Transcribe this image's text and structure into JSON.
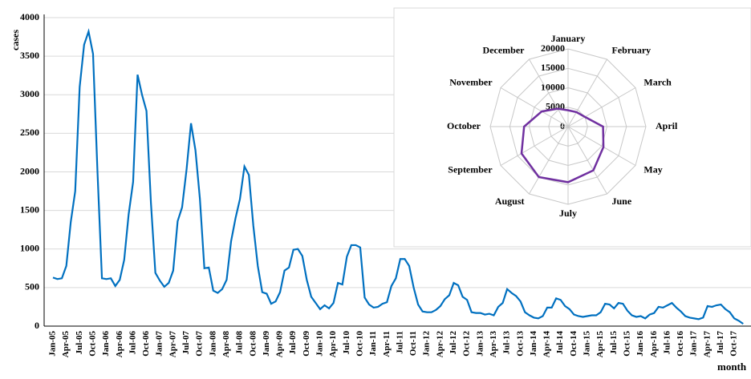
{
  "chart_data": [
    {
      "type": "line",
      "y_label": "cases",
      "x_label": "month",
      "color": "#0070c0",
      "ylim": [
        0,
        4000
      ],
      "yticks": [
        0,
        500,
        1000,
        1500,
        2000,
        2500,
        3000,
        3500,
        4000
      ],
      "grid": true,
      "categories": [
        "Jan-05",
        null,
        null,
        "Apr-05",
        null,
        null,
        "Jul-05",
        null,
        null,
        "Oct-05",
        null,
        null,
        "Jan-06",
        null,
        null,
        "Apr-06",
        null,
        null,
        "Jul-06",
        null,
        null,
        "Oct-06",
        null,
        null,
        "Jan-07",
        null,
        null,
        "Apr-07",
        null,
        null,
        "Jul-07",
        null,
        null,
        "Oct-07",
        null,
        null,
        "Jan-08",
        null,
        null,
        "Apr-08",
        null,
        null,
        "Jul-08",
        null,
        null,
        "Oct-08",
        null,
        null,
        "Jan-09",
        null,
        null,
        "Apr-09",
        null,
        null,
        "Jul-09",
        null,
        null,
        "Oct-09",
        null,
        null,
        "Jan-10",
        null,
        null,
        "Apr-10",
        null,
        null,
        "Jul-10",
        null,
        null,
        "Oct-10",
        null,
        null,
        "Jan-11",
        null,
        null,
        "Apr-11",
        null,
        null,
        "Jul-11",
        null,
        null,
        "Oct-11",
        null,
        null,
        "Jan-12",
        null,
        null,
        "Apr-12",
        null,
        null,
        "Jul-12",
        null,
        null,
        "Oct-12",
        null,
        null,
        "Jan-13",
        null,
        null,
        "Apr-13",
        null,
        null,
        "Jul-13",
        null,
        null,
        "Oct-13",
        null,
        null,
        "Jan-14",
        null,
        null,
        "Apr-14",
        null,
        null,
        "Jul-14",
        null,
        null,
        "Oct-14",
        null,
        null,
        "Jan-15",
        null,
        null,
        "Apr-15",
        null,
        null,
        "Jul-15",
        null,
        null,
        "Oct-15",
        null,
        null,
        "Jan-16",
        null,
        null,
        "Apr-16",
        null,
        null,
        "Jul-16",
        null,
        null,
        "Oct-16",
        null,
        null,
        "Jan-17",
        null,
        null,
        "Apr-17",
        null,
        null,
        "Jul-17",
        null,
        null,
        "Oct-17",
        null,
        null
      ],
      "values": [
        630,
        610,
        620,
        780,
        1350,
        1750,
        3100,
        3650,
        3820,
        3530,
        2000,
        620,
        610,
        620,
        520,
        600,
        860,
        1450,
        1870,
        3260,
        3000,
        2790,
        1600,
        690,
        590,
        510,
        560,
        720,
        1360,
        1540,
        2030,
        2630,
        2280,
        1650,
        750,
        760,
        460,
        430,
        480,
        600,
        1100,
        1400,
        1650,
        2070,
        1960,
        1300,
        780,
        440,
        420,
        290,
        320,
        440,
        720,
        760,
        990,
        1000,
        910,
        600,
        380,
        300,
        220,
        270,
        230,
        300,
        560,
        540,
        900,
        1050,
        1050,
        1020,
        370,
        280,
        240,
        250,
        290,
        310,
        520,
        620,
        870,
        870,
        780,
        500,
        280,
        190,
        180,
        180,
        210,
        260,
        350,
        400,
        560,
        530,
        380,
        340,
        180,
        170,
        170,
        150,
        160,
        140,
        250,
        300,
        480,
        430,
        390,
        320,
        180,
        140,
        110,
        100,
        130,
        240,
        240,
        360,
        340,
        260,
        220,
        150,
        130,
        120,
        130,
        140,
        140,
        180,
        290,
        280,
        230,
        300,
        290,
        200,
        140,
        120,
        130,
        100,
        150,
        170,
        250,
        240,
        270,
        300,
        240,
        190,
        130,
        110,
        100,
        90,
        110,
        260,
        250,
        270,
        280,
        220,
        180,
        100,
        70,
        30
      ]
    },
    {
      "type": "radar",
      "color": "#7030a0",
      "categories": [
        "January",
        "February",
        "March",
        "April",
        "May",
        "June",
        "July",
        "August",
        "September",
        "October",
        "November",
        "December"
      ],
      "values": [
        4200,
        4300,
        5000,
        9000,
        10500,
        13000,
        14300,
        15000,
        13800,
        11300,
        7800,
        5300
      ],
      "rlim": [
        0,
        20000
      ],
      "rticks": [
        0,
        5000,
        10000,
        15000,
        20000
      ]
    }
  ]
}
